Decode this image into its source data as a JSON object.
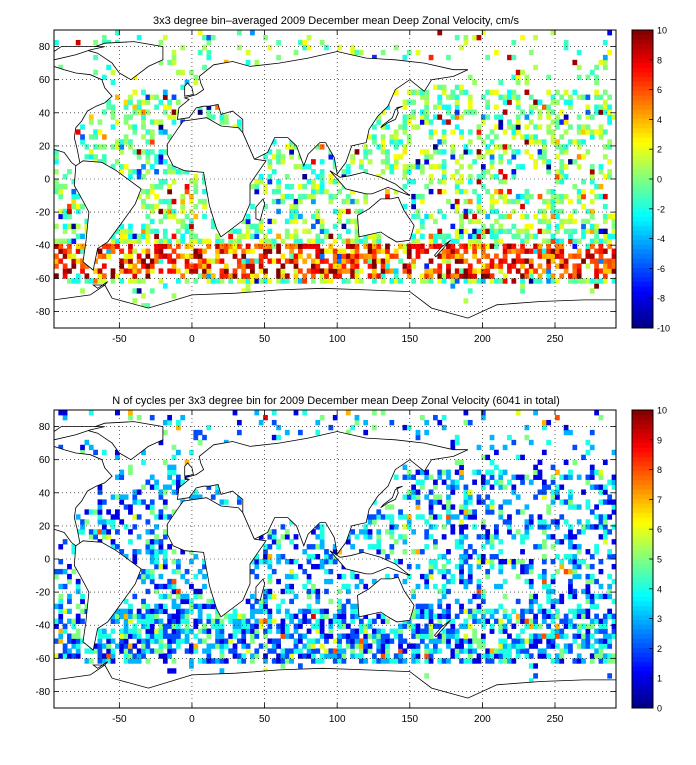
{
  "chart_data": [
    {
      "type": "heatmap",
      "title": "3x3 degree bin–averaged 2009 December mean Deep Zonal Velocity, cm/s",
      "xlabel": "",
      "ylabel": "",
      "xlim": [
        -95,
        292
      ],
      "ylim": [
        -90,
        90
      ],
      "x_ticks": [
        -50,
        0,
        50,
        100,
        150,
        200,
        250
      ],
      "y_ticks": [
        -80,
        -60,
        -40,
        -20,
        0,
        20,
        40,
        60,
        80
      ],
      "grid": true,
      "colorbar": {
        "min": -10,
        "max": 10,
        "ticks": [
          -10,
          -8,
          -6,
          -4,
          -2,
          0,
          2,
          4,
          6,
          8,
          10
        ]
      },
      "bin_size_deg": 3,
      "value_kind": "velocity",
      "seed": 2009
    },
    {
      "type": "heatmap",
      "title": "N of cycles per 3x3 degree bin for 2009 December mean Deep Zonal Velocity (6041 in total)",
      "xlabel": "",
      "ylabel": "",
      "xlim": [
        -95,
        292
      ],
      "ylim": [
        -90,
        90
      ],
      "x_ticks": [
        -50,
        0,
        50,
        100,
        150,
        200,
        250
      ],
      "y_ticks": [
        -80,
        -60,
        -40,
        -20,
        0,
        20,
        40,
        60,
        80
      ],
      "grid": true,
      "colorbar": {
        "min": 0,
        "max": 10,
        "ticks": [
          0,
          1,
          2,
          3,
          4,
          5,
          6,
          7,
          8,
          9,
          10
        ]
      },
      "bin_size_deg": 3,
      "value_kind": "count",
      "seed": 6041
    }
  ]
}
